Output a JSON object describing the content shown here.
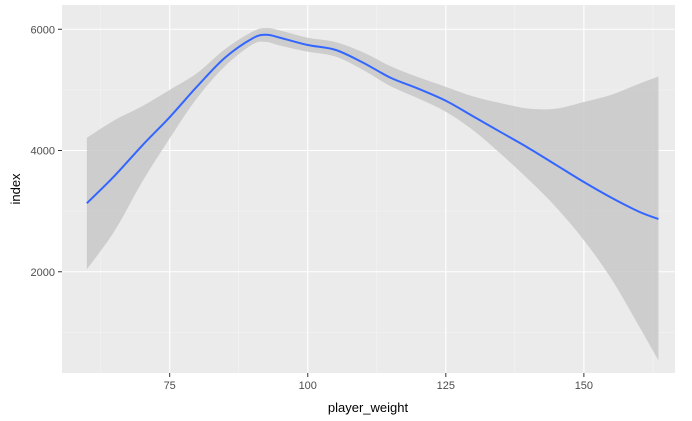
{
  "chart_data": {
    "type": "line",
    "xlabel": "player_weight",
    "ylabel": "index",
    "xlim": [
      55.5,
      166.5
    ],
    "ylim": [
      330,
      6400
    ],
    "x_ticks": [
      75,
      100,
      125,
      150
    ],
    "y_ticks": [
      2000,
      4000,
      6000
    ],
    "x_tick_labels": [
      "75",
      "100",
      "125",
      "150"
    ],
    "y_tick_labels": [
      "2000",
      "4000",
      "6000"
    ],
    "grid": true,
    "legend": "none",
    "series": [
      {
        "smooth": true,
        "x": [
          60,
          65,
          70,
          75,
          80,
          85,
          90,
          92.5,
          95,
          100,
          105,
          110,
          115,
          120,
          125,
          130,
          135,
          140,
          145,
          150,
          155,
          160,
          163.5
        ],
        "y": [
          3130,
          3580,
          4080,
          4550,
          5060,
          5530,
          5850,
          5910,
          5860,
          5740,
          5660,
          5450,
          5200,
          5020,
          4820,
          4560,
          4300,
          4040,
          3760,
          3480,
          3220,
          2990,
          2870
        ],
        "lower": [
          2040,
          2670,
          3480,
          4200,
          4870,
          5390,
          5750,
          5790,
          5730,
          5630,
          5550,
          5330,
          5060,
          4860,
          4640,
          4330,
          3940,
          3520,
          3060,
          2520,
          1880,
          1100,
          540
        ],
        "upper": [
          4210,
          4500,
          4730,
          5000,
          5280,
          5670,
          5960,
          6020,
          5980,
          5860,
          5790,
          5620,
          5390,
          5210,
          5050,
          4890,
          4780,
          4690,
          4690,
          4800,
          4920,
          5100,
          5220
        ]
      }
    ]
  },
  "colors": {
    "panel": "#ebebeb",
    "grid_major": "#ffffff",
    "grid_minor": "#f5f5f5",
    "ribbon": "#c8c8c8",
    "line": "#3366ff",
    "tick": "#333333"
  }
}
